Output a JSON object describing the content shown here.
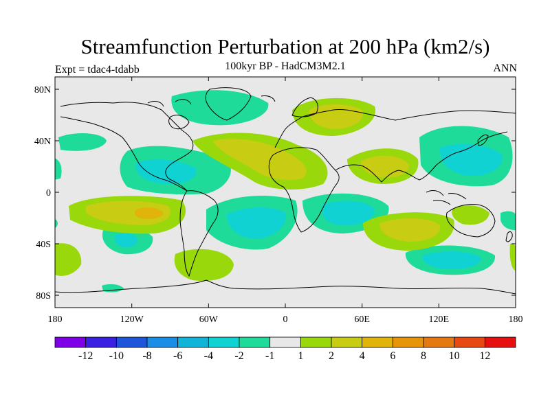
{
  "title": "Streamfunction Perturbation at 200 hPa (km2/s)",
  "subtitle": "100kyr BP - HadCM3M2.1",
  "experiment": "Expt = tdac4-tdabb",
  "season": "ANN",
  "lat_labels": [
    "80N",
    "40N",
    "0",
    "40S",
    "80S"
  ],
  "lon_labels": [
    "180",
    "120W",
    "60W",
    "0",
    "60E",
    "120E",
    "180"
  ],
  "colorbar": {
    "colors": [
      "#7d00e6",
      "#3a20e0",
      "#1f55d8",
      "#1a8ee6",
      "#10b4d8",
      "#10d2d2",
      "#1fdb9a",
      "#e8e8e8",
      "#99d80a",
      "#c8cc12",
      "#e0b40a",
      "#e6940a",
      "#e67810",
      "#e64a12",
      "#e61010"
    ],
    "labels": [
      "-12",
      "-10",
      "-8",
      "-6",
      "-4",
      "-2",
      "-1",
      "1",
      "2",
      "4",
      "6",
      "8",
      "10",
      "12"
    ]
  },
  "colors": {
    "ocean_background": "#e8e8e8",
    "coast": "#000000"
  }
}
